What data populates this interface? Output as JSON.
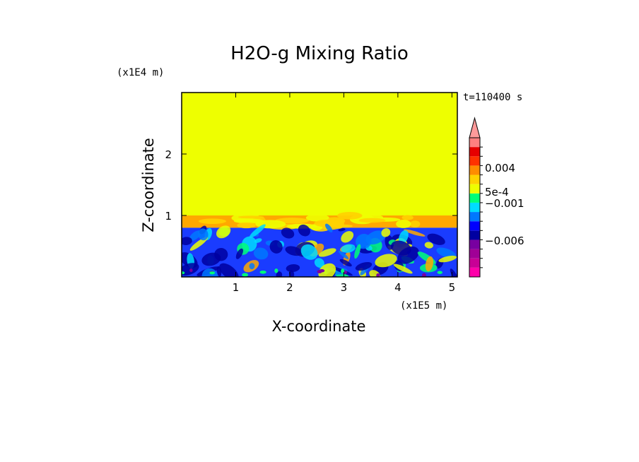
{
  "chart_data": {
    "type": "heatmap",
    "title": "H2O-g Mixing Ratio",
    "xlabel": "X-coordinate",
    "ylabel": "Z-coordinate",
    "x_scale_label": "(x1E5 m)",
    "z_scale_label": "(x1E4 m)",
    "time_label": "t=110400 s",
    "xlim": [
      0,
      5.1
    ],
    "ylim": [
      0,
      3.0
    ],
    "xticks": [
      "1",
      "2",
      "3",
      "4",
      "5"
    ],
    "yticks": [
      "1",
      "2"
    ],
    "regions": [
      {
        "name": "upper",
        "z_range": [
          1.0,
          3.0
        ],
        "color": "#eeff00"
      },
      {
        "name": "transition",
        "z_range": [
          0.8,
          1.0
        ],
        "color": "#ffa800"
      },
      {
        "name": "lower",
        "z_range": [
          0.0,
          0.8
        ],
        "color": "#1a3cff"
      }
    ],
    "colorbar": {
      "colors": [
        "#ff00aa",
        "#c80096",
        "#a00096",
        "#7800a0",
        "#0000a0",
        "#0000ff",
        "#0078ff",
        "#00dcff",
        "#00ff78",
        "#eeff00",
        "#ffd200",
        "#ff8c00",
        "#ff3200",
        "#e60000",
        "#ff8080"
      ],
      "extend_top_color": "#ff9a9a",
      "labels": [
        "0.004",
        "5e-4",
        "−0.001",
        "−0.006"
      ]
    }
  }
}
